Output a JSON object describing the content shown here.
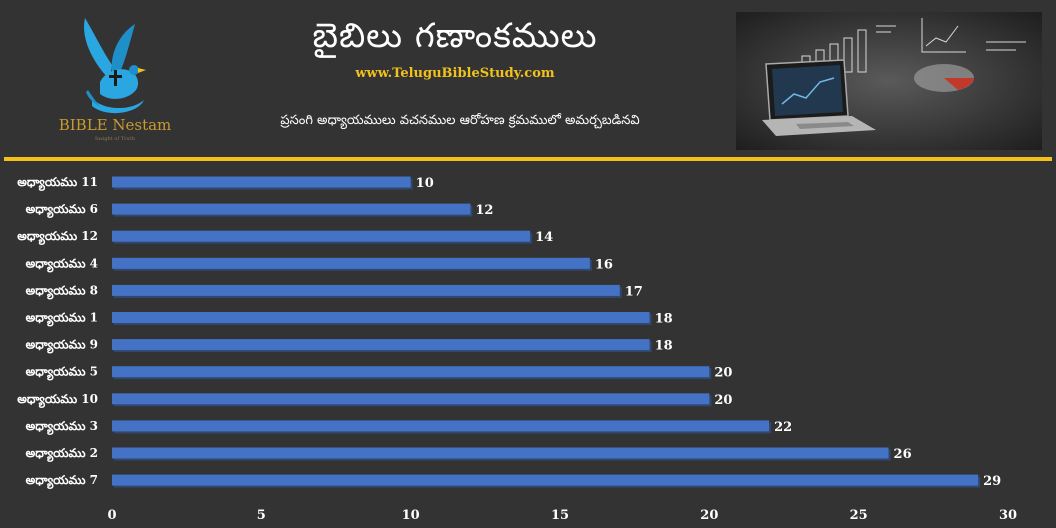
{
  "header": {
    "title": "బైబిలు గణాంకములు",
    "website": "www.TeluguBibleStudy.com",
    "subtitle": "ప్రసంగి అధ్యాయములు వచనముల ఆరోహణ క్రమములో అమర్చబడినవి",
    "logo_text": "BIBLE Nestam",
    "logo_tagline": "Insight of Truth"
  },
  "colors": {
    "background": "#333333",
    "bar": "#4472c4",
    "bar_edge": "#2f5597",
    "accent_gold": "#f5c116",
    "text": "#ffffff",
    "logo_blue": "#2aa6e0"
  },
  "icons": {
    "logo": "dove-cross-hand-icon",
    "header_image": "laptop-charts-illustration"
  },
  "chart_data": {
    "type": "bar",
    "orientation": "horizontal",
    "categories": [
      "అధ్యాయము 11",
      "అధ్యాయము 6",
      "అధ్యాయము 12",
      "అధ్యాయము 4",
      "అధ్యాయము 8",
      "అధ్యాయము 1",
      "అధ్యాయము 9",
      "అధ్యాయము 5",
      "అధ్యాయము 10",
      "అధ్యాయము 3",
      "అధ్యాయము 2",
      "అధ్యాయము 7"
    ],
    "values": [
      10,
      12,
      14,
      16,
      17,
      18,
      18,
      20,
      20,
      22,
      26,
      29
    ],
    "xlim": [
      0,
      30
    ],
    "xticks": [
      0,
      5,
      10,
      15,
      20,
      25,
      30
    ],
    "data_labels": true,
    "grid": false,
    "legend": "none"
  }
}
